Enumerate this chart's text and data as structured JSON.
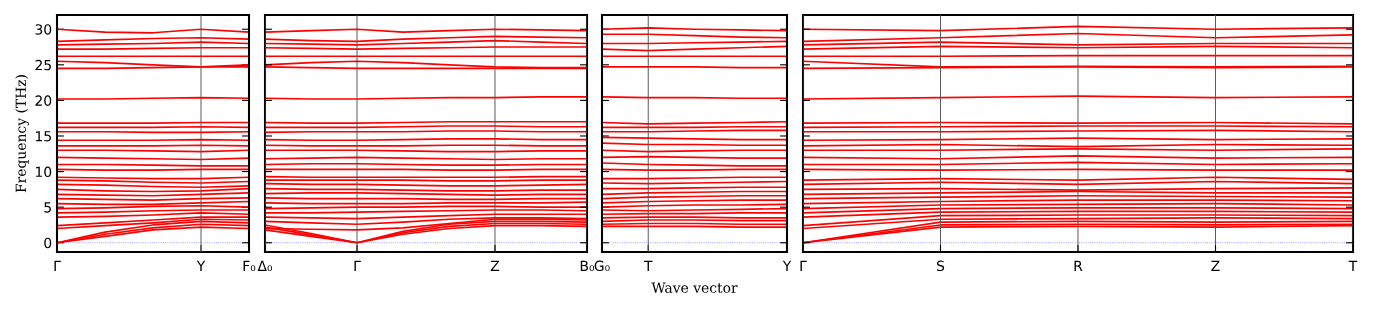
{
  "chart_data": [
    {
      "type": "line",
      "ylabel": "Frequency (THz)",
      "categories": [
        "Γ",
        null,
        null,
        "Y",
        "F₀"
      ],
      "ylim": [
        -1.3,
        32
      ],
      "yticks": [
        0,
        5,
        10,
        15,
        20,
        25,
        30
      ],
      "line_style": "solid",
      "ref_lines": [
        {
          "axis": "y",
          "value": 0,
          "label": null,
          "color": "#7777ff",
          "line_style": "dotted"
        },
        {
          "axis": "x",
          "value": "Y",
          "label": null,
          "color": "#555555",
          "line_style": "solid"
        }
      ],
      "series": [
        {
          "color": "#ff0000",
          "values": [
            0,
            0.9,
            1.8,
            2.2,
            2.0
          ]
        },
        {
          "color": "#ff0000",
          "values": [
            0,
            1.2,
            2.1,
            2.6,
            2.4
          ]
        },
        {
          "color": "#ff0000",
          "values": [
            0,
            1.5,
            2.5,
            3.0,
            2.8
          ]
        },
        {
          "color": "#ff0000",
          "values": [
            2.0,
            2.4,
            2.8,
            3.3,
            3.2
          ]
        },
        {
          "color": "#ff0000",
          "values": [
            2.4,
            2.8,
            3.2,
            3.6,
            3.6
          ]
        },
        {
          "color": "#ff0000",
          "values": [
            3.6,
            3.7,
            3.9,
            4.2,
            4.0
          ]
        },
        {
          "color": "#ff0000",
          "values": [
            4.2,
            4.3,
            4.5,
            4.6,
            4.6
          ]
        },
        {
          "color": "#ff0000",
          "values": [
            4.8,
            4.9,
            5.1,
            5.2,
            5.0
          ]
        },
        {
          "color": "#ff0000",
          "values": [
            5.5,
            5.4,
            5.4,
            5.6,
            5.8
          ]
        },
        {
          "color": "#ff0000",
          "values": [
            6.2,
            6.1,
            6.0,
            6.2,
            6.3
          ]
        },
        {
          "color": "#ff0000",
          "values": [
            6.8,
            6.7,
            6.6,
            6.8,
            7.0
          ]
        },
        {
          "color": "#ff0000",
          "values": [
            7.5,
            7.3,
            7.2,
            7.3,
            7.6
          ]
        },
        {
          "color": "#ff0000",
          "values": [
            8.2,
            8.1,
            7.9,
            7.8,
            8.0
          ]
        },
        {
          "color": "#ff0000",
          "values": [
            8.8,
            8.7,
            8.5,
            8.4,
            8.6
          ]
        },
        {
          "color": "#ff0000",
          "values": [
            9.2,
            9.1,
            9.0,
            9.0,
            9.2
          ]
        },
        {
          "color": "#ff0000",
          "values": [
            10.3,
            10.2,
            10.2,
            10.3,
            10.3
          ]
        },
        {
          "color": "#ff0000",
          "values": [
            11.0,
            11.0,
            10.9,
            10.8,
            10.8
          ]
        },
        {
          "color": "#ff0000",
          "values": [
            12.0,
            11.9,
            11.8,
            11.7,
            11.9
          ]
        },
        {
          "color": "#ff0000",
          "values": [
            13.0,
            13.0,
            12.9,
            12.8,
            13.0
          ]
        },
        {
          "color": "#ff0000",
          "values": [
            13.6,
            13.6,
            13.6,
            13.7,
            13.6
          ]
        },
        {
          "color": "#ff0000",
          "values": [
            14.4,
            14.4,
            14.4,
            14.5,
            14.4
          ]
        },
        {
          "color": "#ff0000",
          "values": [
            15.6,
            15.6,
            15.5,
            15.5,
            15.6
          ]
        },
        {
          "color": "#ff0000",
          "values": [
            16.2,
            16.2,
            16.2,
            16.3,
            16.2
          ]
        },
        {
          "color": "#ff0000",
          "values": [
            16.8,
            16.8,
            16.8,
            16.9,
            16.9
          ]
        },
        {
          "color": "#ff0000",
          "values": [
            20.2,
            20.2,
            20.3,
            20.4,
            20.3
          ]
        },
        {
          "color": "#ff0000",
          "values": [
            24.5,
            24.5,
            24.6,
            24.7,
            24.7
          ]
        },
        {
          "color": "#ff0000",
          "values": [
            25.5,
            25.3,
            25.0,
            24.7,
            25.0
          ]
        },
        {
          "color": "#ff0000",
          "values": [
            26.2,
            26.2,
            26.2,
            26.2,
            26.2
          ]
        },
        {
          "color": "#ff0000",
          "values": [
            27.2,
            27.2,
            27.3,
            27.4,
            27.4
          ]
        },
        {
          "color": "#ff0000",
          "values": [
            27.8,
            27.9,
            28.0,
            28.2,
            28.0
          ]
        },
        {
          "color": "#ff0000",
          "values": [
            28.3,
            28.5,
            28.7,
            28.8,
            28.6
          ]
        },
        {
          "color": "#ff0000",
          "values": [
            30.0,
            29.6,
            29.5,
            30.0,
            29.6
          ]
        }
      ]
    },
    {
      "type": "line",
      "categories": [
        "Δ₀",
        null,
        "Γ",
        null,
        null,
        "Z",
        null,
        "B₀"
      ],
      "ylim": [
        -1.3,
        32
      ],
      "yticks": [
        0,
        5,
        10,
        15,
        20,
        25,
        30
      ],
      "tick_labels": "x",
      "grid": "x",
      "line_style": "solid",
      "ref_lines": [
        {
          "axis": "y",
          "value": 0,
          "label": null,
          "color": "#7777ff",
          "line_style": "dotted"
        }
      ],
      "series": [
        {
          "color": "#ff0000",
          "values": [
            1.8,
            0.9,
            0,
            1.2,
            2.0,
            2.4,
            2.4,
            2.3
          ]
        },
        {
          "color": "#ff0000",
          "values": [
            2.2,
            1.1,
            0,
            1.4,
            2.3,
            2.7,
            2.7,
            2.6
          ]
        },
        {
          "color": "#ff0000",
          "values": [
            2.5,
            1.3,
            0,
            1.6,
            2.6,
            3.0,
            3.0,
            2.9
          ]
        },
        {
          "color": "#ff0000",
          "values": [
            2.0,
            1.9,
            1.8,
            2.1,
            2.7,
            3.3,
            3.3,
            3.2
          ]
        },
        {
          "color": "#ff0000",
          "values": [
            3.0,
            2.8,
            2.6,
            2.9,
            3.3,
            3.5,
            3.5,
            3.4
          ]
        },
        {
          "color": "#ff0000",
          "values": [
            3.6,
            3.5,
            3.4,
            3.6,
            3.8,
            4.0,
            4.0,
            4.0
          ]
        },
        {
          "color": "#ff0000",
          "values": [
            4.2,
            4.2,
            4.3,
            4.4,
            4.5,
            4.6,
            4.6,
            4.5
          ]
        },
        {
          "color": "#ff0000",
          "values": [
            4.8,
            4.9,
            5.0,
            5.0,
            5.1,
            5.1,
            5.0,
            5.0
          ]
        },
        {
          "color": "#ff0000",
          "values": [
            5.6,
            5.5,
            5.5,
            5.5,
            5.6,
            5.6,
            5.6,
            5.7
          ]
        },
        {
          "color": "#ff0000",
          "values": [
            6.3,
            6.2,
            6.2,
            6.2,
            6.1,
            6.1,
            6.2,
            6.2
          ]
        },
        {
          "color": "#ff0000",
          "values": [
            6.9,
            7.0,
            7.0,
            6.9,
            6.8,
            6.7,
            6.8,
            6.8
          ]
        },
        {
          "color": "#ff0000",
          "values": [
            7.6,
            7.5,
            7.5,
            7.4,
            7.3,
            7.3,
            7.4,
            7.4
          ]
        },
        {
          "color": "#ff0000",
          "values": [
            8.3,
            8.2,
            8.2,
            8.1,
            8.0,
            8.0,
            8.1,
            8.2
          ]
        },
        {
          "color": "#ff0000",
          "values": [
            8.8,
            8.8,
            8.8,
            8.8,
            8.7,
            8.7,
            8.8,
            8.8
          ]
        },
        {
          "color": "#ff0000",
          "values": [
            9.3,
            9.2,
            9.2,
            9.2,
            9.2,
            9.2,
            9.3,
            9.3
          ]
        },
        {
          "color": "#ff0000",
          "values": [
            10.3,
            10.3,
            10.3,
            10.3,
            10.2,
            10.2,
            10.3,
            10.3
          ]
        },
        {
          "color": "#ff0000",
          "values": [
            11.0,
            11.1,
            11.1,
            11.0,
            10.9,
            10.9,
            11.0,
            11.0
          ]
        },
        {
          "color": "#ff0000",
          "values": [
            11.8,
            11.9,
            12.0,
            11.9,
            11.8,
            11.7,
            11.8,
            11.8
          ]
        },
        {
          "color": "#ff0000",
          "values": [
            13.0,
            13.0,
            13.0,
            12.9,
            12.8,
            12.8,
            12.9,
            12.9
          ]
        },
        {
          "color": "#ff0000",
          "values": [
            13.7,
            13.6,
            13.6,
            13.6,
            13.7,
            13.7,
            13.6,
            13.6
          ]
        },
        {
          "color": "#ff0000",
          "values": [
            14.5,
            14.4,
            14.4,
            14.5,
            14.6,
            14.6,
            14.5,
            14.5
          ]
        },
        {
          "color": "#ff0000",
          "values": [
            15.5,
            15.6,
            15.6,
            15.6,
            15.7,
            15.7,
            15.6,
            15.6
          ]
        },
        {
          "color": "#ff0000",
          "values": [
            16.2,
            16.2,
            16.2,
            16.3,
            16.4,
            16.4,
            16.3,
            16.3
          ]
        },
        {
          "color": "#ff0000",
          "values": [
            16.9,
            16.8,
            16.8,
            16.9,
            17.0,
            17.0,
            17.0,
            17.0
          ]
        },
        {
          "color": "#ff0000",
          "values": [
            20.3,
            20.2,
            20.2,
            20.3,
            20.4,
            20.4,
            20.5,
            20.5
          ]
        },
        {
          "color": "#ff0000",
          "values": [
            24.7,
            24.6,
            24.5,
            24.5,
            24.5,
            24.5,
            24.5,
            24.5
          ]
        },
        {
          "color": "#ff0000",
          "values": [
            25.0,
            25.3,
            25.5,
            25.3,
            25.0,
            24.7,
            24.6,
            24.6
          ]
        },
        {
          "color": "#ff0000",
          "values": [
            26.2,
            26.2,
            26.2,
            26.2,
            26.2,
            26.2,
            26.2,
            26.2
          ]
        },
        {
          "color": "#ff0000",
          "values": [
            27.4,
            27.3,
            27.2,
            27.3,
            27.4,
            27.5,
            27.5,
            27.5
          ]
        },
        {
          "color": "#ff0000",
          "values": [
            28.0,
            27.9,
            27.8,
            28.0,
            28.2,
            28.4,
            28.2,
            28.0
          ]
        },
        {
          "color": "#ff0000",
          "values": [
            28.6,
            28.4,
            28.3,
            28.6,
            28.8,
            29.0,
            28.9,
            28.8
          ]
        },
        {
          "color": "#ff0000",
          "values": [
            29.6,
            29.8,
            30.0,
            29.6,
            29.8,
            30.0,
            29.9,
            29.8
          ]
        }
      ]
    },
    {
      "type": "line",
      "xlabel": "Wave vector",
      "categories": [
        "G₀",
        "T",
        null,
        null,
        "Y"
      ],
      "ylim": [
        -1.3,
        32
      ],
      "yticks": [
        0,
        5,
        10,
        15,
        20,
        25,
        30
      ],
      "tick_labels": "x",
      "line_style": "solid",
      "ref_lines": [
        {
          "axis": "y",
          "value": 0,
          "label": null,
          "color": "#7777ff",
          "line_style": "dotted"
        },
        {
          "axis": "x",
          "value": "T",
          "label": null,
          "color": "#555555",
          "line_style": "solid"
        }
      ],
      "series": [
        {
          "color": "#ff0000",
          "values": [
            2.3,
            2.3,
            2.3,
            2.2,
            2.2
          ]
        },
        {
          "color": "#ff0000",
          "values": [
            2.6,
            2.7,
            2.7,
            2.6,
            2.6
          ]
        },
        {
          "color": "#ff0000",
          "values": [
            3.0,
            3.2,
            3.2,
            3.1,
            3.1
          ]
        },
        {
          "color": "#ff0000",
          "values": [
            3.5,
            3.6,
            3.6,
            3.5,
            3.5
          ]
        },
        {
          "color": "#ff0000",
          "values": [
            4.0,
            4.1,
            4.1,
            4.2,
            4.2
          ]
        },
        {
          "color": "#ff0000",
          "values": [
            4.6,
            4.5,
            4.6,
            4.7,
            4.8
          ]
        },
        {
          "color": "#ff0000",
          "values": [
            5.0,
            5.2,
            5.3,
            5.3,
            5.4
          ]
        },
        {
          "color": "#ff0000",
          "values": [
            5.6,
            5.8,
            5.9,
            6.0,
            6.0
          ]
        },
        {
          "color": "#ff0000",
          "values": [
            6.2,
            6.4,
            6.5,
            6.6,
            6.6
          ]
        },
        {
          "color": "#ff0000",
          "values": [
            6.8,
            7.0,
            7.1,
            7.2,
            7.2
          ]
        },
        {
          "color": "#ff0000",
          "values": [
            7.6,
            7.6,
            7.7,
            7.8,
            7.8
          ]
        },
        {
          "color": "#ff0000",
          "values": [
            8.4,
            8.3,
            8.4,
            8.5,
            8.6
          ]
        },
        {
          "color": "#ff0000",
          "values": [
            9.0,
            9.0,
            9.1,
            9.2,
            9.2
          ]
        },
        {
          "color": "#ff0000",
          "values": [
            10.3,
            10.2,
            10.2,
            10.3,
            10.3
          ]
        },
        {
          "color": "#ff0000",
          "values": [
            11.2,
            11.0,
            10.9,
            10.8,
            10.8
          ]
        },
        {
          "color": "#ff0000",
          "values": [
            12.0,
            12.1,
            12.0,
            11.9,
            11.9
          ]
        },
        {
          "color": "#ff0000",
          "values": [
            13.0,
            12.8,
            12.9,
            13.0,
            13.0
          ]
        },
        {
          "color": "#ff0000",
          "values": [
            14.0,
            13.8,
            13.8,
            13.7,
            13.7
          ]
        },
        {
          "color": "#ff0000",
          "values": [
            14.8,
            14.7,
            14.6,
            14.5,
            14.5
          ]
        },
        {
          "color": "#ff0000",
          "values": [
            15.6,
            15.6,
            15.7,
            15.8,
            15.8
          ]
        },
        {
          "color": "#ff0000",
          "values": [
            16.2,
            16.2,
            16.2,
            16.3,
            16.3
          ]
        },
        {
          "color": "#ff0000",
          "values": [
            16.9,
            16.7,
            16.8,
            16.9,
            17.0
          ]
        },
        {
          "color": "#ff0000",
          "values": [
            20.5,
            20.4,
            20.4,
            20.3,
            20.3
          ]
        },
        {
          "color": "#ff0000",
          "values": [
            24.7,
            24.7,
            24.7,
            24.6,
            24.6
          ]
        },
        {
          "color": "#ff0000",
          "values": [
            26.2,
            26.2,
            26.2,
            26.2,
            26.2
          ]
        },
        {
          "color": "#ff0000",
          "values": [
            27.2,
            27.0,
            27.2,
            27.4,
            27.6
          ]
        },
        {
          "color": "#ff0000",
          "values": [
            28.0,
            28.0,
            28.1,
            28.2,
            28.3
          ]
        },
        {
          "color": "#ff0000",
          "values": [
            29.3,
            29.3,
            29.1,
            28.9,
            28.8
          ]
        },
        {
          "color": "#ff0000",
          "values": [
            30.0,
            30.2,
            30.0,
            29.9,
            29.8
          ]
        }
      ]
    },
    {
      "type": "line",
      "categories": [
        "Γ",
        "S",
        "R",
        "Z",
        "T"
      ],
      "ylim": [
        -1.3,
        32
      ],
      "yticks": [
        0,
        5,
        10,
        15,
        20,
        25,
        30
      ],
      "tick_labels": "x",
      "grid": "x",
      "line_style": "solid",
      "ref_lines": [
        {
          "axis": "y",
          "value": 0,
          "label": null,
          "color": "#7777ff",
          "line_style": "dotted"
        }
      ],
      "series": [
        {
          "color": "#ff0000",
          "values": [
            0,
            2.2,
            2.3,
            2.2,
            2.4
          ]
        },
        {
          "color": "#ff0000",
          "values": [
            0,
            2.5,
            2.6,
            2.5,
            2.6
          ]
        },
        {
          "color": "#ff0000",
          "values": [
            0,
            2.9,
            3.0,
            2.9,
            3.0
          ]
        },
        {
          "color": "#ff0000",
          "values": [
            2.0,
            3.3,
            3.4,
            3.5,
            3.4
          ]
        },
        {
          "color": "#ff0000",
          "values": [
            2.4,
            3.8,
            3.9,
            3.9,
            3.8
          ]
        },
        {
          "color": "#ff0000",
          "values": [
            3.6,
            4.3,
            4.4,
            4.4,
            4.3
          ]
        },
        {
          "color": "#ff0000",
          "values": [
            4.2,
            4.8,
            4.9,
            4.9,
            4.8
          ]
        },
        {
          "color": "#ff0000",
          "values": [
            4.8,
            5.3,
            5.4,
            5.5,
            5.3
          ]
        },
        {
          "color": "#ff0000",
          "values": [
            5.5,
            5.8,
            6.0,
            6.0,
            5.9
          ]
        },
        {
          "color": "#ff0000",
          "values": [
            6.2,
            6.4,
            6.6,
            6.5,
            6.4
          ]
        },
        {
          "color": "#ff0000",
          "values": [
            6.8,
            7.0,
            7.2,
            7.0,
            7.0
          ]
        },
        {
          "color": "#ff0000",
          "values": [
            7.5,
            7.6,
            7.4,
            7.6,
            7.7
          ]
        },
        {
          "color": "#ff0000",
          "values": [
            8.2,
            8.5,
            8.2,
            8.6,
            8.3
          ]
        },
        {
          "color": "#ff0000",
          "values": [
            8.8,
            9.0,
            8.8,
            9.2,
            8.9
          ]
        },
        {
          "color": "#ff0000",
          "values": [
            10.3,
            10.2,
            10.3,
            10.2,
            10.2
          ]
        },
        {
          "color": "#ff0000",
          "values": [
            11.0,
            11.0,
            11.3,
            11.0,
            11.1
          ]
        },
        {
          "color": "#ff0000",
          "values": [
            12.0,
            11.8,
            12.2,
            11.9,
            12.0
          ]
        },
        {
          "color": "#ff0000",
          "values": [
            13.0,
            13.0,
            13.2,
            13.0,
            13.2
          ]
        },
        {
          "color": "#ff0000",
          "values": [
            13.6,
            13.8,
            13.5,
            13.8,
            13.7
          ]
        },
        {
          "color": "#ff0000",
          "values": [
            14.4,
            14.5,
            14.7,
            14.5,
            14.6
          ]
        },
        {
          "color": "#ff0000",
          "values": [
            15.6,
            15.6,
            15.7,
            15.8,
            15.6
          ]
        },
        {
          "color": "#ff0000",
          "values": [
            16.2,
            16.3,
            16.4,
            16.4,
            16.3
          ]
        },
        {
          "color": "#ff0000",
          "values": [
            16.8,
            16.9,
            16.8,
            16.9,
            16.7
          ]
        },
        {
          "color": "#ff0000",
          "values": [
            20.2,
            20.4,
            20.6,
            20.4,
            20.5
          ]
        },
        {
          "color": "#ff0000",
          "values": [
            24.5,
            24.6,
            24.7,
            24.6,
            24.7
          ]
        },
        {
          "color": "#ff0000",
          "values": [
            25.5,
            24.7,
            24.8,
            24.7,
            24.8
          ]
        },
        {
          "color": "#ff0000",
          "values": [
            26.2,
            26.2,
            26.3,
            26.3,
            26.3
          ]
        },
        {
          "color": "#ff0000",
          "values": [
            27.2,
            27.6,
            27.4,
            27.6,
            27.4
          ]
        },
        {
          "color": "#ff0000",
          "values": [
            27.8,
            28.2,
            27.8,
            28.0,
            28.0
          ]
        },
        {
          "color": "#ff0000",
          "values": [
            28.3,
            28.8,
            29.4,
            28.8,
            29.2
          ]
        },
        {
          "color": "#ff0000",
          "values": [
            30.0,
            29.8,
            30.4,
            30.0,
            30.2
          ]
        }
      ]
    }
  ]
}
